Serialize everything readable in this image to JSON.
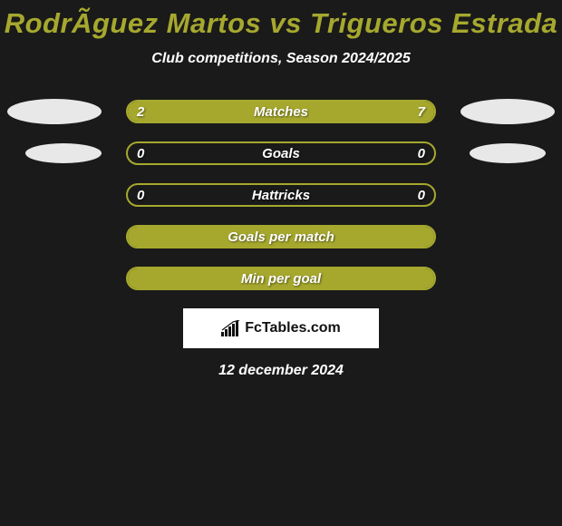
{
  "title": "RodrÃ­guez Martos vs Trigueros Estrada",
  "subtitle": "Club competitions, Season 2024/2025",
  "colors": {
    "accent": "#a6a82e",
    "background": "#1a1a1a",
    "ellipse": "#e8e8e8",
    "text": "#ffffff",
    "logo_bg": "#ffffff",
    "logo_text": "#111111"
  },
  "rows": [
    {
      "label": "Matches",
      "left": "2",
      "right": "7",
      "left_pct": 22,
      "right_pct": 78,
      "ellipses": true,
      "ellipse_side": "both",
      "show_values": true
    },
    {
      "label": "Goals",
      "left": "0",
      "right": "0",
      "left_pct": 0,
      "right_pct": 0,
      "ellipses": true,
      "ellipse_side": "both",
      "show_values": true
    },
    {
      "label": "Hattricks",
      "left": "0",
      "right": "0",
      "left_pct": 0,
      "right_pct": 0,
      "ellipses": false,
      "show_values": true
    },
    {
      "label": "Goals per match",
      "left": "",
      "right": "",
      "full": true,
      "ellipses": false,
      "show_values": false
    },
    {
      "label": "Min per goal",
      "left": "",
      "right": "",
      "full": true,
      "ellipses": false,
      "show_values": false
    }
  ],
  "logo": {
    "text": "FcTables.com"
  },
  "date": "12 december 2024"
}
